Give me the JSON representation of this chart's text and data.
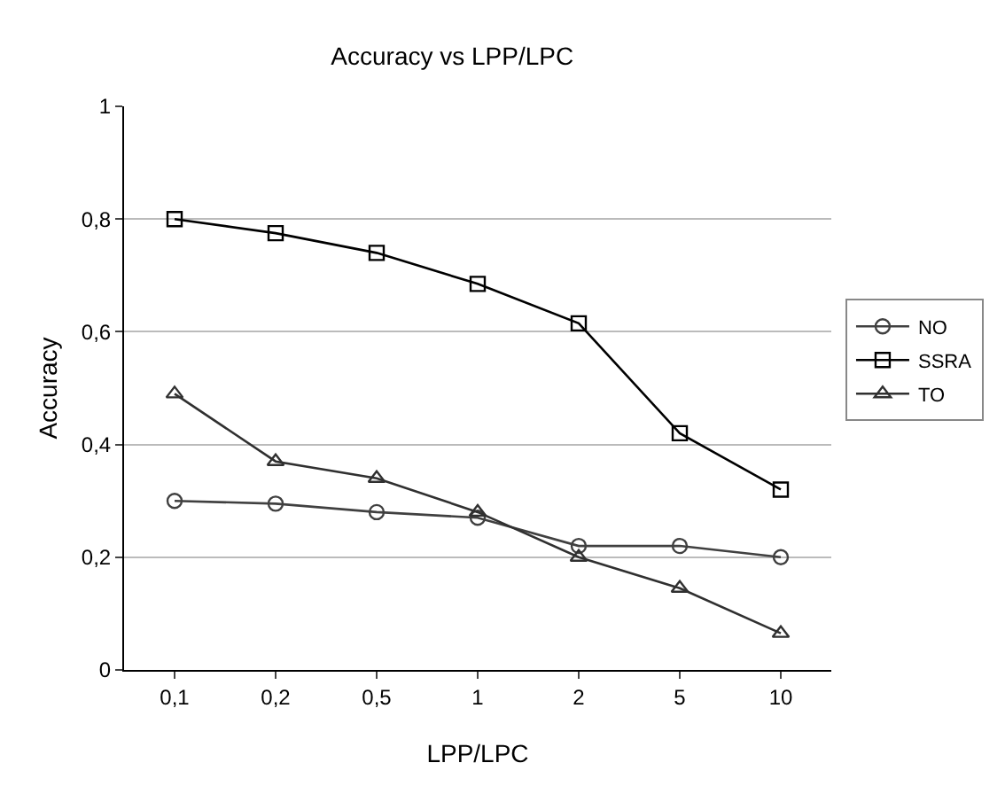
{
  "chart_data": {
    "type": "line",
    "title": "Accuracy vs LPP/LPC",
    "xlabel": "LPP/LPC",
    "ylabel": "Accuracy",
    "categories": [
      "0,1",
      "0,2",
      "0,5",
      "1",
      "2",
      "5",
      "10"
    ],
    "series": [
      {
        "name": "NO",
        "color": "#404040",
        "marker": "circle",
        "values": [
          0.3,
          0.295,
          0.28,
          0.27,
          0.22,
          0.22,
          0.2
        ]
      },
      {
        "name": "SSRA",
        "color": "#000000",
        "marker": "square",
        "values": [
          0.8,
          0.775,
          0.74,
          0.685,
          0.615,
          0.42,
          0.32
        ]
      },
      {
        "name": "TO",
        "color": "#303030",
        "marker": "triangle",
        "values": [
          0.49,
          0.37,
          0.34,
          0.28,
          0.2,
          0.145,
          0.065
        ]
      }
    ],
    "ylim": [
      0,
      1
    ],
    "yticks": [
      {
        "value": 0,
        "label": "0"
      },
      {
        "value": 0.2,
        "label": "0,2"
      },
      {
        "value": 0.4,
        "label": "0,4"
      },
      {
        "value": 0.6,
        "label": "0,6"
      },
      {
        "value": 0.8,
        "label": "0,8"
      },
      {
        "value": 1,
        "label": "1"
      }
    ],
    "grid": "y",
    "legend": "right",
    "line_style": "solid"
  }
}
